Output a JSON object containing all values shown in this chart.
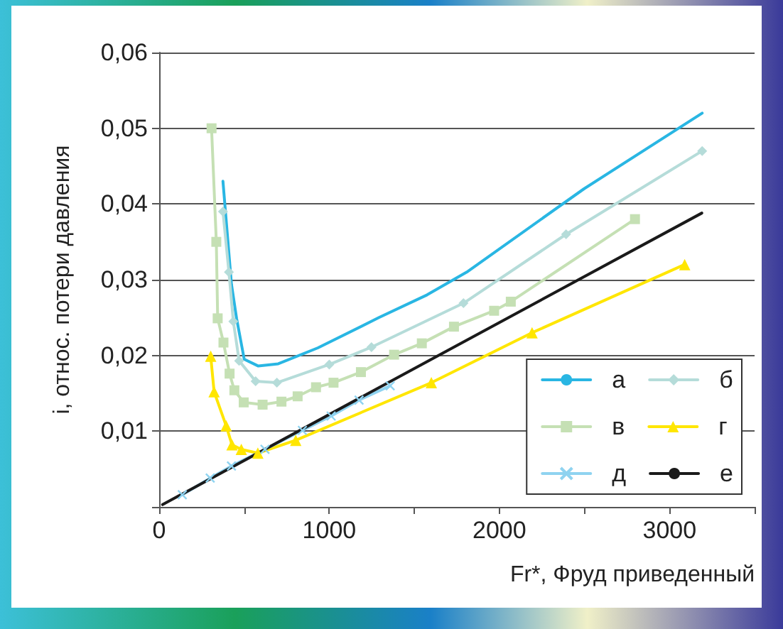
{
  "chart_data": {
    "type": "line",
    "xlabel": "Fr*, Фруд приведенный",
    "ylabel": "i, относ. потери давления",
    "xlim": [
      0,
      3500
    ],
    "xticks": [
      0,
      {
        "value": 500,
        "label": null
      },
      1000,
      {
        "value": 1500,
        "label": null
      },
      2000,
      {
        "value": 2500,
        "label": null
      },
      3000,
      {
        "value": 3500,
        "label": null
      }
    ],
    "ylim": [
      0,
      0.06
    ],
    "yticks": [
      {
        "value": 0,
        "label": null
      },
      {
        "value": 0.01,
        "label": "0,01"
      },
      {
        "value": 0.02,
        "label": "0,02"
      },
      {
        "value": 0.03,
        "label": "0,03"
      },
      {
        "value": 0.04,
        "label": "0,04"
      },
      {
        "value": 0.05,
        "label": "0,05"
      },
      {
        "value": 0.06,
        "label": "0,06"
      }
    ],
    "grid": "y",
    "legend": "bottom right",
    "series": [
      {
        "name": "а",
        "color": "#29b6e3",
        "marker": "none",
        "x": [
          375,
          425,
          455,
          500,
          583,
          700,
          933,
          1292,
          1575,
          1808,
          2497,
          3192
        ],
        "values": [
          0.043,
          0.0294,
          0.0249,
          0.0195,
          0.0186,
          0.0189,
          0.021,
          0.025,
          0.028,
          0.031,
          0.042,
          0.052
        ]
      },
      {
        "name": "б",
        "color": "#b5dcd9",
        "marker": "diamond",
        "x": [
          375,
          410,
          436,
          470,
          567,
          692,
          1000,
          1248,
          1789,
          2392,
          3192
        ],
        "values": [
          0.039,
          0.031,
          0.0245,
          0.0193,
          0.0166,
          0.0164,
          0.0188,
          0.0211,
          0.0269,
          0.036,
          0.047
        ]
      },
      {
        "name": "в",
        "color": "#c5e0b4",
        "marker": "square",
        "x": [
          308,
          336,
          344,
          378,
          414,
          442,
          497,
          608,
          719,
          814,
          922,
          1025,
          1186,
          1381,
          1544,
          1733,
          1969,
          2067,
          2797
        ],
        "values": [
          0.05,
          0.035,
          0.0249,
          0.0217,
          0.0176,
          0.0154,
          0.0138,
          0.0135,
          0.0139,
          0.0146,
          0.0158,
          0.0164,
          0.0178,
          0.0201,
          0.0216,
          0.0238,
          0.0259,
          0.0271,
          0.038
        ]
      },
      {
        "name": "г",
        "color": "#ffe600",
        "marker": "triangle",
        "x": [
          303,
          323,
          394,
          428,
          483,
          580,
          803,
          1600,
          2192,
          3089
        ],
        "values": [
          0.0199,
          0.0152,
          0.0107,
          0.0082,
          0.0076,
          0.0071,
          0.0088,
          0.0164,
          0.023,
          0.032
        ]
      },
      {
        "name": "д",
        "color": "#8fd3f0",
        "marker": "cross",
        "x": [
          136,
          300,
          425,
          622,
          842,
          1011,
          1175,
          1358
        ],
        "values": [
          0.0016,
          0.0038,
          0.0054,
          0.0076,
          0.0101,
          0.012,
          0.0141,
          0.016
        ]
      },
      {
        "name": "е",
        "color": "#1a1a1a",
        "marker": "none",
        "x": [
          20,
          3190
        ],
        "values": [
          0.0003,
          0.0388
        ]
      }
    ]
  }
}
